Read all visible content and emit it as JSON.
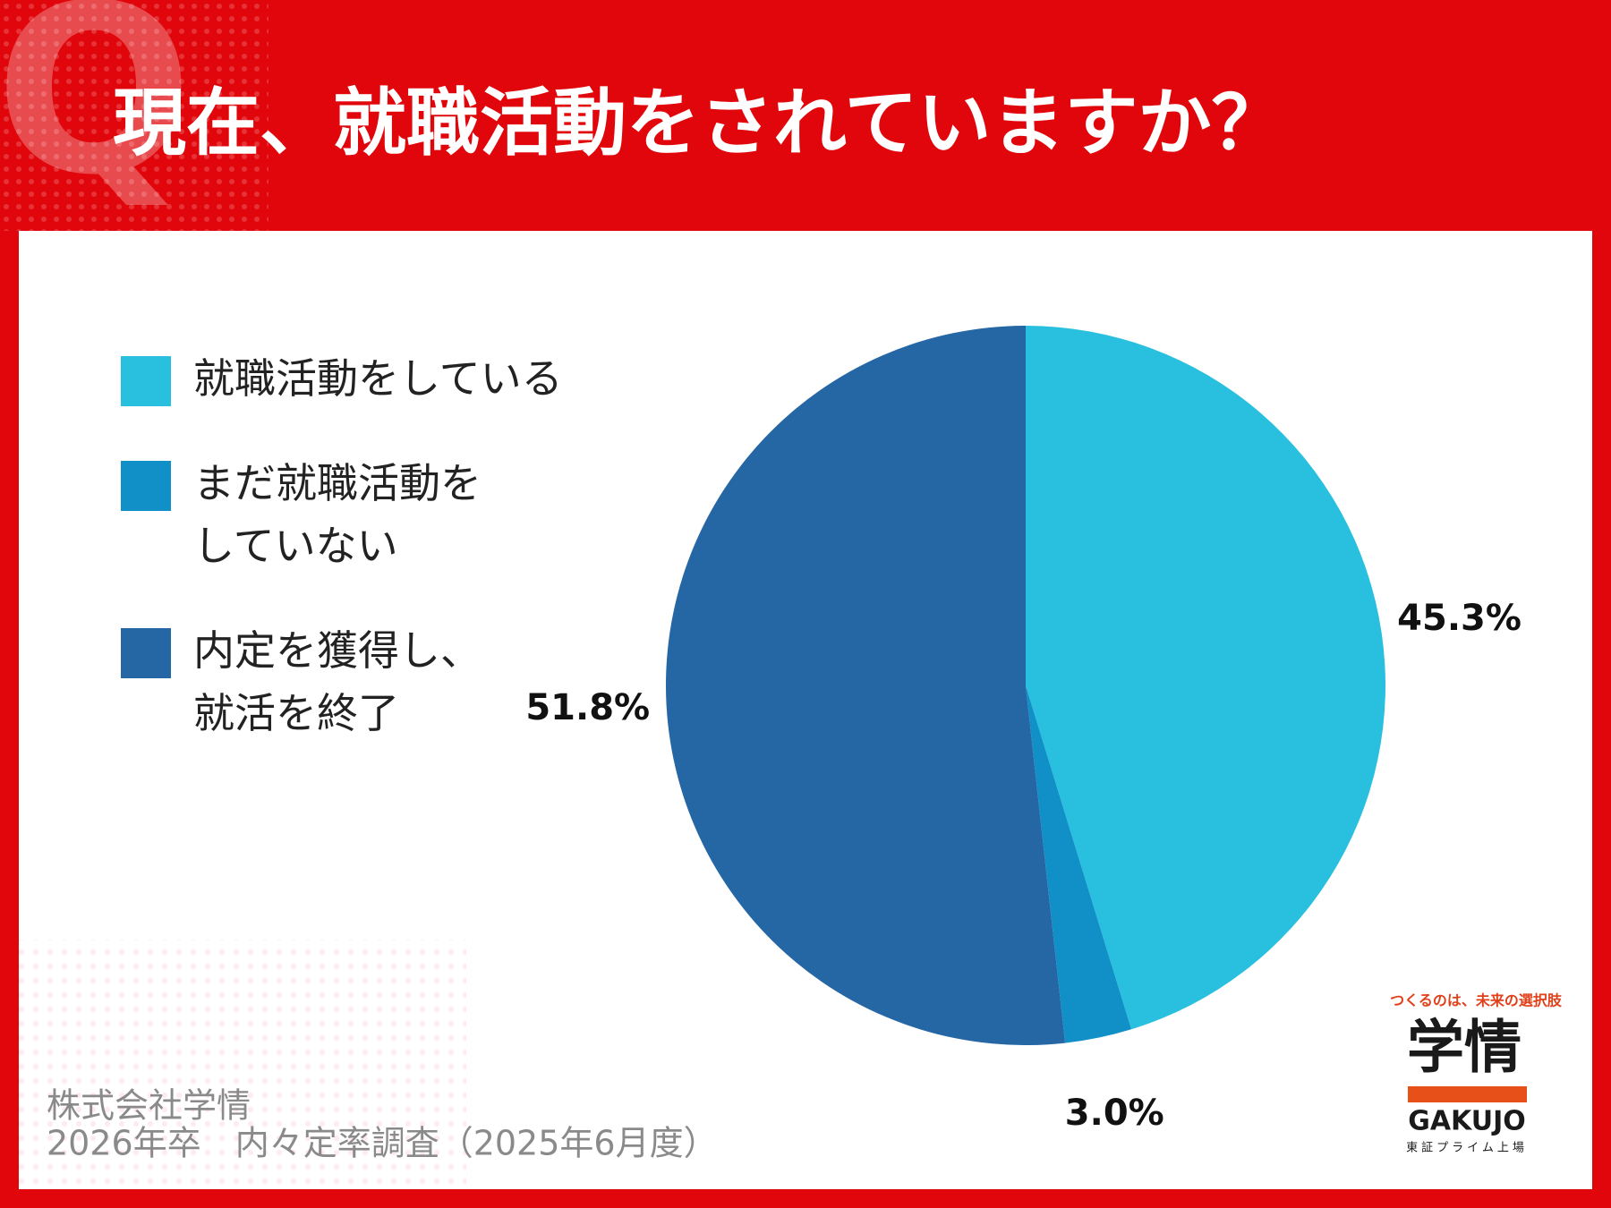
{
  "q_mark": "Q",
  "chart_data": {
    "type": "pie",
    "title": "現在、就職活動をされていますか？",
    "categories": [
      "就職活動をしている",
      "まだ就職活動を\nしていない",
      "内定を獲得し、\n就活を終了"
    ],
    "values": [
      45.3,
      3.0,
      51.8
    ],
    "value_labels": [
      "45.3%",
      "3.0%",
      "51.8%"
    ],
    "colors": [
      "#29c0e0",
      "#1190c8",
      "#2566a5"
    ],
    "legend": "left"
  },
  "footer": {
    "company": "株式会社学情",
    "survey": "2026年卒　内々定率調査（2025年6月度）"
  },
  "logo": {
    "tagline": "つくるのは、未来の選択肢",
    "name": "学情",
    "romaji": "GAKUJO",
    "listing": "東証プライム上場"
  }
}
